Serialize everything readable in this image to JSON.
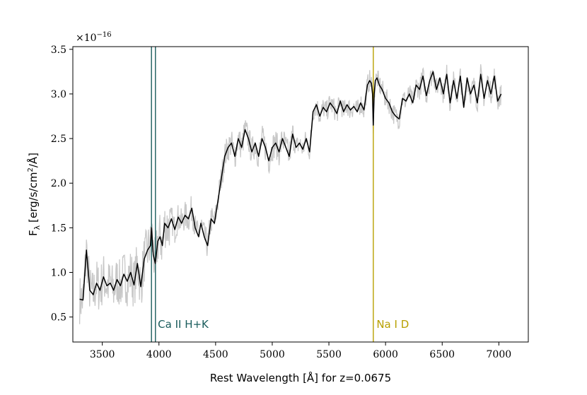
{
  "chart_data": {
    "type": "line",
    "title": "",
    "xlabel": "Rest Wavelength [Å] for z=0.0675",
    "ylabel": "F",
    "ylabel_sub": "λ",
    "ylabel_unit_a": "[erg/s/cm",
    "ylabel_sup": "2",
    "ylabel_unit_b": "/Å]",
    "y_multiplier_base": "×10",
    "y_multiplier_exp": "−16",
    "xlim": [
      3240,
      7260
    ],
    "ylim": [
      0.22,
      3.53
    ],
    "x_ticks": [
      3500,
      4000,
      4500,
      5000,
      5500,
      6000,
      6500,
      7000
    ],
    "x_tick_labels": [
      "3500",
      "4000",
      "4500",
      "5000",
      "5500",
      "6000",
      "6500",
      "7000"
    ],
    "y_ticks": [
      0.5,
      1.0,
      1.5,
      2.0,
      2.5,
      3.0,
      3.5
    ],
    "y_tick_labels": [
      "0.5",
      "1.0",
      "1.5",
      "2.0",
      "2.5",
      "3.0",
      "3.5"
    ],
    "grid": false,
    "colors": {
      "smoothed": "#000000",
      "raw": "#c8c8c8",
      "ca": "#1a5c5c",
      "na": "#b8a000"
    },
    "smoothed_spectrum": {
      "x": [
        3300,
        3330,
        3360,
        3390,
        3420,
        3450,
        3480,
        3510,
        3540,
        3570,
        3600,
        3630,
        3660,
        3690,
        3720,
        3750,
        3780,
        3810,
        3840,
        3870,
        3900,
        3925,
        3935,
        3950,
        3968,
        3990,
        4010,
        4030,
        4050,
        4080,
        4110,
        4140,
        4170,
        4200,
        4230,
        4260,
        4290,
        4320,
        4350,
        4370,
        4400,
        4430,
        4460,
        4490,
        4520,
        4550,
        4580,
        4610,
        4640,
        4670,
        4700,
        4730,
        4760,
        4790,
        4820,
        4850,
        4880,
        4910,
        4940,
        4970,
        5000,
        5030,
        5060,
        5090,
        5120,
        5150,
        5180,
        5210,
        5240,
        5270,
        5300,
        5330,
        5360,
        5390,
        5420,
        5450,
        5480,
        5510,
        5540,
        5570,
        5600,
        5630,
        5660,
        5690,
        5720,
        5750,
        5780,
        5810,
        5840,
        5860,
        5875,
        5885,
        5892,
        5900,
        5910,
        5925,
        5945,
        5970,
        6000,
        6030,
        6060,
        6090,
        6120,
        6150,
        6180,
        6210,
        6240,
        6270,
        6300,
        6330,
        6360,
        6390,
        6420,
        6450,
        6480,
        6510,
        6540,
        6570,
        6600,
        6630,
        6660,
        6690,
        6720,
        6750,
        6780,
        6810,
        6840,
        6870,
        6900,
        6930,
        6960,
        6990,
        7020
      ],
      "y": [
        0.7,
        0.69,
        1.25,
        0.8,
        0.75,
        0.88,
        0.8,
        0.95,
        0.85,
        0.88,
        0.8,
        0.92,
        0.85,
        0.98,
        0.9,
        1.0,
        0.86,
        1.1,
        0.84,
        1.15,
        1.25,
        1.3,
        1.5,
        1.2,
        1.1,
        1.35,
        1.4,
        1.3,
        1.55,
        1.5,
        1.6,
        1.48,
        1.62,
        1.55,
        1.64,
        1.6,
        1.72,
        1.5,
        1.4,
        1.55,
        1.4,
        1.3,
        1.6,
        1.55,
        1.8,
        2.05,
        2.3,
        2.4,
        2.45,
        2.3,
        2.5,
        2.4,
        2.6,
        2.5,
        2.35,
        2.45,
        2.3,
        2.5,
        2.4,
        2.25,
        2.4,
        2.45,
        2.35,
        2.5,
        2.4,
        2.3,
        2.55,
        2.4,
        2.45,
        2.38,
        2.5,
        2.35,
        2.8,
        2.88,
        2.75,
        2.85,
        2.8,
        2.9,
        2.85,
        2.78,
        2.92,
        2.8,
        2.88,
        2.82,
        2.86,
        2.8,
        2.9,
        2.82,
        3.1,
        3.15,
        3.12,
        3.0,
        2.65,
        3.0,
        3.15,
        3.18,
        3.1,
        3.05,
        2.95,
        2.9,
        2.8,
        2.75,
        2.72,
        2.95,
        2.92,
        3.0,
        2.9,
        3.1,
        3.05,
        3.2,
        2.98,
        3.15,
        3.25,
        3.05,
        3.18,
        3.0,
        3.22,
        2.9,
        3.15,
        2.95,
        3.2,
        2.85,
        3.18,
        3.0,
        3.1,
        2.9,
        3.22,
        2.95,
        3.15,
        3.0,
        3.2,
        2.92,
        3.0
      ]
    },
    "vertical_lines": [
      {
        "x": 3934,
        "color": "ca"
      },
      {
        "x": 3969,
        "color": "ca"
      },
      {
        "x": 5892,
        "color": "na"
      }
    ],
    "annotations": [
      {
        "text": "Ca II H+K",
        "x": 3990,
        "y": 0.38,
        "color": "ca"
      },
      {
        "text": "Na I D",
        "x": 5920,
        "y": 0.38,
        "color": "na"
      }
    ]
  }
}
